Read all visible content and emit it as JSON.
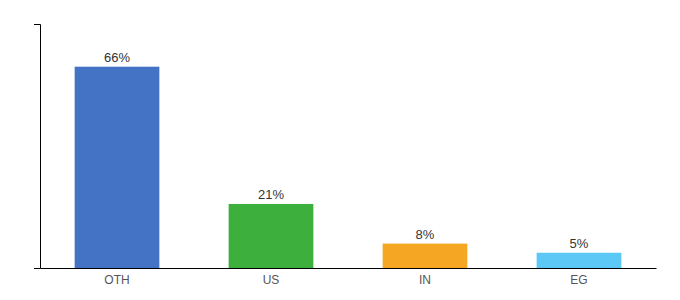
{
  "chart_data": {
    "type": "bar",
    "categories": [
      "OTH",
      "US",
      "IN",
      "EG"
    ],
    "values": [
      66,
      21,
      8,
      5
    ],
    "value_labels": [
      "66%",
      "21%",
      "8%",
      "5%"
    ],
    "data_labels": true,
    "colors": [
      "#4472c4",
      "#3daf3d",
      "#f5a623",
      "#5bc8f5"
    ],
    "ylim": [
      0,
      80
    ],
    "tick_labels": "x",
    "grid": false
  }
}
